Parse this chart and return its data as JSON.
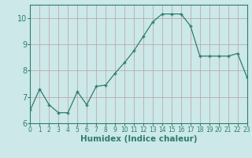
{
  "x": [
    0,
    1,
    2,
    3,
    4,
    5,
    6,
    7,
    8,
    9,
    10,
    11,
    12,
    13,
    14,
    15,
    16,
    17,
    18,
    19,
    20,
    21,
    22,
    23
  ],
  "y": [
    6.5,
    7.3,
    6.7,
    6.4,
    6.4,
    7.2,
    6.7,
    7.4,
    7.45,
    7.9,
    8.3,
    8.75,
    9.3,
    9.85,
    10.15,
    10.15,
    10.15,
    9.7,
    8.55,
    8.55,
    8.55,
    8.55,
    8.65,
    7.75
  ],
  "xlabel": "Humidex (Indice chaleur)",
  "ylim": [
    6,
    10.5
  ],
  "xlim": [
    0,
    23
  ],
  "yticks": [
    6,
    7,
    8,
    9,
    10
  ],
  "xticks": [
    0,
    1,
    2,
    3,
    4,
    5,
    6,
    7,
    8,
    9,
    10,
    11,
    12,
    13,
    14,
    15,
    16,
    17,
    18,
    19,
    20,
    21,
    22,
    23
  ],
  "line_color": "#2e7d6e",
  "marker": "+",
  "marker_size": 3.5,
  "bg_color": "#cce8e8",
  "grid_color": "#b8a0a0",
  "tick_color": "#2e7d6e",
  "label_color": "#2e7d6e",
  "font_size_ytick": 7,
  "font_size_xtick": 5.5,
  "font_size_label": 7.5
}
